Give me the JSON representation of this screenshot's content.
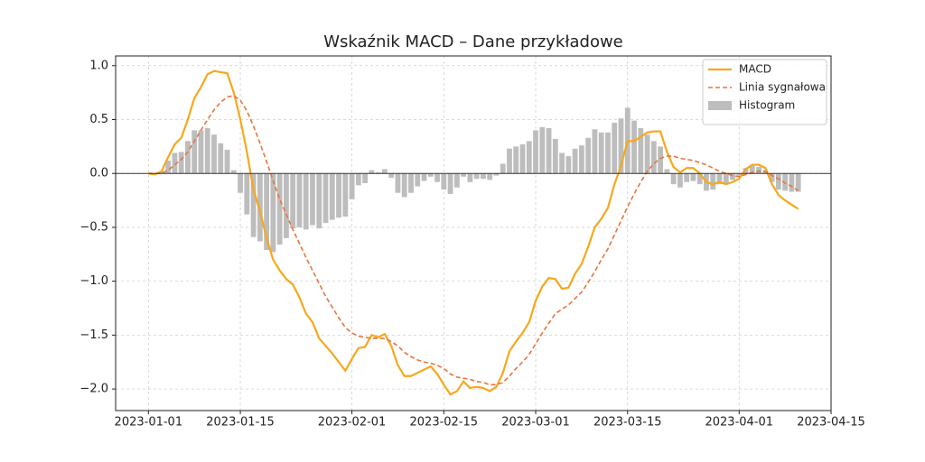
{
  "chart_data": {
    "type": "line",
    "title": "Wskaźnik MACD – Dane przykładowe",
    "x": [
      "2023-01-01",
      "2023-01-02",
      "2023-01-03",
      "2023-01-04",
      "2023-01-05",
      "2023-01-06",
      "2023-01-07",
      "2023-01-08",
      "2023-01-09",
      "2023-01-10",
      "2023-01-11",
      "2023-01-12",
      "2023-01-13",
      "2023-01-14",
      "2023-01-15",
      "2023-01-16",
      "2023-01-17",
      "2023-01-18",
      "2023-01-19",
      "2023-01-20",
      "2023-01-21",
      "2023-01-22",
      "2023-01-23",
      "2023-01-24",
      "2023-01-25",
      "2023-01-26",
      "2023-01-27",
      "2023-01-28",
      "2023-01-29",
      "2023-01-30",
      "2023-01-31",
      "2023-02-01",
      "2023-02-02",
      "2023-02-03",
      "2023-02-04",
      "2023-02-05",
      "2023-02-06",
      "2023-02-07",
      "2023-02-08",
      "2023-02-09",
      "2023-02-10",
      "2023-02-11",
      "2023-02-12",
      "2023-02-13",
      "2023-02-14",
      "2023-02-15",
      "2023-02-16",
      "2023-02-17",
      "2023-02-18",
      "2023-02-19",
      "2023-02-20",
      "2023-02-21",
      "2023-02-22",
      "2023-02-23",
      "2023-02-24",
      "2023-02-25",
      "2023-02-26",
      "2023-02-27",
      "2023-02-28",
      "2023-03-01",
      "2023-03-02",
      "2023-03-03",
      "2023-03-04",
      "2023-03-05",
      "2023-03-06",
      "2023-03-07",
      "2023-03-08",
      "2023-03-09",
      "2023-03-10",
      "2023-03-11",
      "2023-03-12",
      "2023-03-13",
      "2023-03-14",
      "2023-03-15",
      "2023-03-16",
      "2023-03-17",
      "2023-03-18",
      "2023-03-19",
      "2023-03-20",
      "2023-03-21",
      "2023-03-22",
      "2023-03-23",
      "2023-03-24",
      "2023-03-25",
      "2023-03-26",
      "2023-03-27",
      "2023-03-28",
      "2023-03-29",
      "2023-03-30",
      "2023-03-31",
      "2023-04-01",
      "2023-04-02",
      "2023-04-03",
      "2023-04-04",
      "2023-04-05",
      "2023-04-06",
      "2023-04-07",
      "2023-04-08",
      "2023-04-09",
      "2023-04-10"
    ],
    "series": [
      {
        "name": "MACD",
        "type": "line",
        "color": "#f6a81c",
        "values": [
          0,
          -0.01,
          0.02,
          0.15,
          0.27,
          0.33,
          0.5,
          0.7,
          0.8,
          0.92,
          0.95,
          0.94,
          0.93,
          0.75,
          0.5,
          0.2,
          -0.15,
          -0.35,
          -0.6,
          -0.8,
          -0.9,
          -0.98,
          -1.03,
          -1.15,
          -1.3,
          -1.38,
          -1.53,
          -1.6,
          -1.67,
          -1.75,
          -1.83,
          -1.72,
          -1.62,
          -1.61,
          -1.5,
          -1.52,
          -1.49,
          -1.6,
          -1.78,
          -1.88,
          -1.88,
          -1.85,
          -1.82,
          -1.79,
          -1.86,
          -1.96,
          -2.05,
          -2.02,
          -1.93,
          -1.99,
          -1.98,
          -1.99,
          -2.02,
          -1.98,
          -1.85,
          -1.65,
          -1.56,
          -1.48,
          -1.38,
          -1.18,
          -1.05,
          -0.97,
          -0.98,
          -1.07,
          -1.06,
          -0.93,
          -0.84,
          -0.68,
          -0.5,
          -0.42,
          -0.32,
          -0.1,
          0.07,
          0.3,
          0.3,
          0.34,
          0.38,
          0.39,
          0.39,
          0.2,
          0.06,
          0.01,
          0.05,
          0.05,
          0,
          -0.08,
          -0.1,
          -0.08,
          -0.1,
          -0.08,
          -0.05,
          0.04,
          0.08,
          0.08,
          0.05,
          -0.1,
          -0.2,
          -0.25,
          -0.29,
          -0.33
        ]
      },
      {
        "name": "Linia sygnałowa",
        "type": "line",
        "dash": true,
        "color": "#e8743b",
        "values": [
          0,
          0,
          0,
          0.03,
          0.08,
          0.13,
          0.2,
          0.3,
          0.4,
          0.5,
          0.59,
          0.66,
          0.71,
          0.72,
          0.68,
          0.58,
          0.44,
          0.28,
          0.11,
          -0.07,
          -0.24,
          -0.38,
          -0.52,
          -0.65,
          -0.78,
          -0.9,
          -1.02,
          -1.14,
          -1.24,
          -1.34,
          -1.43,
          -1.48,
          -1.51,
          -1.52,
          -1.53,
          -1.53,
          -1.53,
          -1.56,
          -1.6,
          -1.66,
          -1.7,
          -1.73,
          -1.75,
          -1.76,
          -1.78,
          -1.81,
          -1.86,
          -1.89,
          -1.9,
          -1.91,
          -1.93,
          -1.94,
          -1.96,
          -1.96,
          -1.94,
          -1.88,
          -1.81,
          -1.75,
          -1.68,
          -1.58,
          -1.48,
          -1.39,
          -1.3,
          -1.26,
          -1.22,
          -1.16,
          -1.1,
          -1.01,
          -0.91,
          -0.8,
          -0.7,
          -0.57,
          -0.44,
          -0.31,
          -0.19,
          -0.08,
          0.02,
          0.09,
          0.14,
          0.16,
          0.16,
          0.14,
          0.13,
          0.12,
          0.1,
          0.08,
          0.05,
          0.02,
          0,
          -0.02,
          -0.03,
          -0.01,
          0.01,
          0.02,
          0.02,
          -0.02,
          -0.05,
          -0.09,
          -0.12,
          -0.16
        ]
      },
      {
        "name": "Histogram",
        "type": "bar",
        "color": "#bdbdbd",
        "values": [
          0,
          -0.01,
          0.02,
          0.12,
          0.19,
          0.2,
          0.3,
          0.4,
          0.4,
          0.42,
          0.36,
          0.28,
          0.22,
          0.03,
          -0.18,
          -0.38,
          -0.59,
          -0.63,
          -0.71,
          -0.73,
          -0.66,
          -0.6,
          -0.51,
          -0.5,
          -0.52,
          -0.48,
          -0.51,
          -0.46,
          -0.43,
          -0.41,
          -0.4,
          -0.24,
          -0.11,
          -0.09,
          0.03,
          0.01,
          0.04,
          -0.04,
          -0.18,
          -0.22,
          -0.18,
          -0.12,
          -0.07,
          -0.03,
          -0.08,
          -0.15,
          -0.19,
          -0.13,
          -0.03,
          -0.08,
          -0.05,
          -0.05,
          -0.06,
          -0.02,
          0.09,
          0.23,
          0.25,
          0.27,
          0.3,
          0.4,
          0.43,
          0.42,
          0.32,
          0.19,
          0.16,
          0.23,
          0.26,
          0.33,
          0.41,
          0.38,
          0.38,
          0.47,
          0.51,
          0.61,
          0.49,
          0.42,
          0.36,
          0.3,
          0.25,
          0.04,
          -0.1,
          -0.13,
          -0.08,
          -0.07,
          -0.1,
          -0.16,
          -0.15,
          -0.1,
          -0.1,
          -0.06,
          -0.02,
          0.05,
          0.07,
          0.06,
          0.03,
          -0.08,
          -0.15,
          -0.16,
          -0.17,
          -0.17
        ]
      }
    ],
    "xlim": [
      "2022-12-27",
      "2023-04-15"
    ],
    "xticks": [
      "2023-01-01",
      "2023-01-15",
      "2023-02-01",
      "2023-02-15",
      "2023-03-01",
      "2023-03-15",
      "2023-04-01",
      "2023-04-15"
    ],
    "ylim": [
      -2.2,
      1.09
    ],
    "yticks": [
      {
        "value": -2.0,
        "label": "−2.0"
      },
      {
        "value": -1.5,
        "label": "−1.5"
      },
      {
        "value": -1.0,
        "label": "−1.0"
      },
      {
        "value": -0.5,
        "label": "−0.5"
      },
      {
        "value": 0,
        "label": "0.0"
      },
      {
        "value": 0.5,
        "label": "0.5"
      },
      {
        "value": 1.0,
        "label": "1.0"
      }
    ],
    "grid": true,
    "zero_line": true,
    "legend": "upper-right"
  }
}
